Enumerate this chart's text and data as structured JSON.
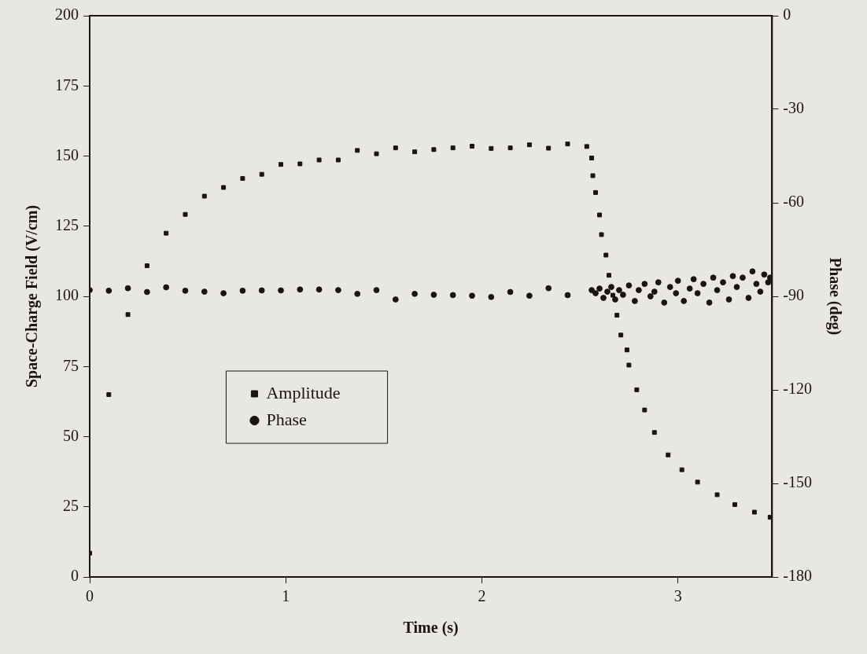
{
  "chart_data": {
    "type": "scatter",
    "xlabel": "Time (s)",
    "ylabel": "Space-Charge Field (V/cm)",
    "y2label": "Phase (deg)",
    "xlim": [
      0,
      3.48
    ],
    "xticks": [
      0,
      1,
      2,
      3
    ],
    "ylim": [
      0,
      200
    ],
    "yticks": [
      0,
      25,
      50,
      75,
      100,
      125,
      150,
      175,
      200
    ],
    "y2lim": [
      -180,
      0
    ],
    "y2ticks": [
      -180,
      -150,
      -120,
      -90,
      -60,
      -30,
      0
    ],
    "grid": false,
    "legend": "bottom left",
    "series": [
      {
        "name": "Amplitude",
        "color": "#1a1412",
        "marker": "square",
        "x": [
          0,
          0.0975,
          0.195,
          0.2925,
          0.39,
          0.4875,
          0.585,
          0.6825,
          0.78,
          0.8775,
          0.975,
          1.0725,
          1.17,
          1.2675,
          1.365,
          1.4625,
          1.56,
          1.6575,
          1.755,
          1.8525,
          1.95,
          2.0475,
          2.145,
          2.2425,
          2.34,
          2.4375,
          2.535,
          2.56,
          2.566,
          2.58,
          2.6,
          2.61,
          2.633,
          2.648,
          2.668,
          2.689,
          2.709,
          2.74,
          2.75,
          2.79,
          2.83,
          2.88,
          2.95,
          3.02,
          3.1,
          3.2,
          3.29,
          3.39,
          3.47
        ],
        "values": [
          8.5,
          65,
          93.5,
          110.9,
          122.5,
          129.2,
          135.7,
          138.8,
          142,
          143.5,
          147,
          147.2,
          148.6,
          148.6,
          152,
          150.8,
          152.9,
          151.5,
          152.3,
          152.9,
          153.5,
          152.7,
          152.9,
          154,
          152.8,
          154.3,
          153.4,
          149.3,
          143,
          137,
          129,
          122,
          114.7,
          107.5,
          100.4,
          93.3,
          86.2,
          80.9,
          75.5,
          66.7,
          59.5,
          51.5,
          43.5,
          38.2,
          33.8,
          29.3,
          25.8,
          23.1,
          21.3
        ]
      },
      {
        "name": "Phase",
        "color": "#1a1412",
        "marker": "circle",
        "axis": "y2",
        "x": [
          0,
          0.0975,
          0.195,
          0.2925,
          0.39,
          0.4875,
          0.585,
          0.6825,
          0.78,
          0.8775,
          0.975,
          1.0725,
          1.17,
          1.2675,
          1.365,
          1.4625,
          1.56,
          1.6575,
          1.755,
          1.8525,
          1.95,
          2.0475,
          2.145,
          2.2425,
          2.34,
          2.4375,
          2.56,
          2.58,
          2.6,
          2.62,
          2.64,
          2.66,
          2.68,
          2.7,
          2.72,
          2.75,
          2.78,
          2.8,
          2.83,
          2.86,
          2.88,
          2.9,
          2.93,
          2.96,
          2.99,
          3.0,
          3.03,
          3.06,
          3.08,
          3.1,
          3.13,
          3.16,
          3.18,
          3.2,
          3.23,
          3.26,
          3.28,
          3.3,
          3.33,
          3.36,
          3.38,
          3.4,
          3.42,
          3.44,
          3.46,
          3.47
        ],
        "values": [
          -88.0,
          -88.2,
          -87.4,
          -88.6,
          -87.1,
          -88.2,
          -88.5,
          -89.0,
          -88.2,
          -88.1,
          -88.1,
          -87.8,
          -87.8,
          -88.0,
          -89.2,
          -88.0,
          -91.0,
          -89.2,
          -89.5,
          -89.6,
          -89.8,
          -90.2,
          -88.6,
          -89.8,
          -87.4,
          -89.6,
          -88,
          -89,
          -87.5,
          -90.5,
          -88.5,
          -87,
          -91,
          -88,
          -89.5,
          -86.5,
          -91.5,
          -88,
          -86,
          -90,
          -88.5,
          -85.5,
          -92,
          -87,
          -89,
          -85,
          -91.5,
          -87.5,
          -84.5,
          -89,
          -86,
          -92,
          -84,
          -88,
          -85.5,
          -91,
          -83.5,
          -87,
          -84,
          -90.5,
          -82,
          -86,
          -88.5,
          -83,
          -85.5,
          -84
        ]
      }
    ]
  }
}
